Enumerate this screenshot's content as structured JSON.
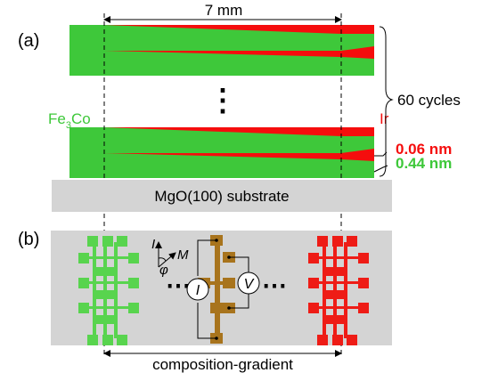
{
  "panel_a": {
    "label": "(a)",
    "width_label": "7 mm",
    "left_material": "Fe",
    "left_material_sub": "3",
    "left_material_end": "Co",
    "right_material": "Ir",
    "cycles_label": "60 cycles",
    "ir_thickness": "0.06 nm",
    "fe_thickness": "0.44 nm",
    "substrate_label": "MgO(100) substrate",
    "ellipsis": "⋮"
  },
  "panel_b": {
    "label": "(b)",
    "current_symbol": "I",
    "angle_symbol": "φ",
    "magnetization_symbol": "M",
    "current_source": "I",
    "voltmeter": "V",
    "ellipsis_left": "⋯",
    "ellipsis_right": "⋯",
    "gradient_label": "composition-gradient"
  },
  "colors": {
    "fe3co_green": "#3ec83a",
    "ir_red": "#f50d0d",
    "substrate_gray": "#d4d4d4",
    "bar_green": "#58d44e",
    "bar_brown": "#a8741d",
    "bar_red": "#ee1c16"
  }
}
